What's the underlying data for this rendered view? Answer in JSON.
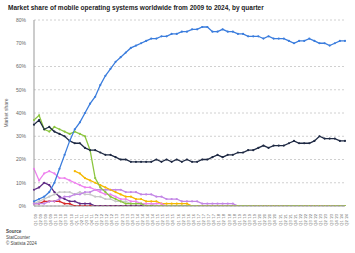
{
  "chart_data": {
    "type": "line",
    "title": "Market share of mobile operating systems worldwide from 2009 to 2024, by quarter",
    "y_label": "Market share",
    "source": [
      "Source",
      "StatCounter",
      "© Statista 2024"
    ],
    "categories": [
      "Q1 '09",
      "Q2 '09",
      "Q3 '09",
      "Q4 '09",
      "Q1 '10",
      "Q2 '10",
      "Q3 '10",
      "Q4 '10",
      "Q1 '11",
      "Q2 '11",
      "Q3 '11",
      "Q4 '11",
      "Q1 '12",
      "Q2 '12",
      "Q3 '12",
      "Q4 '12",
      "Q1 '13",
      "Q2 '13",
      "Q3 '13",
      "Q4 '13",
      "Q1 '14",
      "Q2 '14",
      "Q3 '14",
      "Q4 '14",
      "Q1 '15",
      "Q2 '15",
      "Q3 '15",
      "Q4 '15",
      "Q1 '16",
      "Q2 '16",
      "Q3 '16",
      "Q4 '16",
      "Q1 '17",
      "Q2 '17",
      "Q3 '17",
      "Q4 '17",
      "Q1 '18",
      "Q2 '18",
      "Q3 '18",
      "Q4 '18",
      "Q1 '19",
      "Q2 '19",
      "Q3 '19",
      "Q4 '19",
      "Q1 '20",
      "Q2 '20",
      "Q3 '20",
      "Q4 '20",
      "Q1 '21",
      "Q2 '21",
      "Q3 '21",
      "Q4 '21",
      "Q1 '22",
      "Q2 '22",
      "Q3 '22",
      "Q4 '22",
      "Q1 '23",
      "Q2 '23",
      "Q3 '23",
      "Q4 '23",
      "Q1 '24",
      "Q2 '24"
    ],
    "series": [
      {
        "color": "#d62728",
        "values": [
          1,
          1,
          2,
          2,
          2,
          2,
          1,
          1,
          0,
          0,
          0,
          0,
          0,
          0,
          0,
          0,
          0,
          0,
          0,
          0,
          0,
          0,
          0,
          0,
          0,
          0,
          0,
          0,
          0,
          0,
          0,
          0,
          0,
          0,
          0,
          0,
          0,
          0,
          0,
          0,
          0,
          0,
          0,
          0,
          0,
          0,
          0,
          0,
          0,
          0,
          0,
          0,
          0,
          0,
          0,
          0,
          0,
          0,
          0,
          0,
          0,
          0
        ]
      },
      {
        "color": "#5e2a84",
        "values": [
          7,
          8,
          10,
          9,
          6,
          4,
          3,
          2,
          2,
          1,
          1,
          1,
          0,
          0,
          0,
          0,
          0,
          0,
          0,
          0,
          0,
          0,
          0,
          0,
          0,
          0,
          0,
          0,
          0,
          0,
          0,
          0,
          0,
          0,
          0,
          0,
          0,
          0,
          0,
          0,
          0,
          0,
          0,
          0,
          0,
          0,
          0,
          0,
          0,
          0,
          0,
          0,
          0,
          0,
          0,
          0,
          0,
          0,
          0,
          0,
          0,
          0
        ]
      },
      {
        "color": "#c8c8c8",
        "values": [
          1,
          2,
          3,
          4,
          5,
          6,
          6,
          6,
          5,
          6,
          5,
          5,
          4,
          4,
          3,
          3,
          2,
          2,
          2,
          1,
          1,
          1,
          1,
          1,
          0,
          0,
          0,
          0,
          0,
          0,
          0,
          0,
          0,
          0,
          0,
          0,
          0,
          0,
          0,
          0,
          0,
          0,
          0,
          0,
          0,
          0,
          0,
          0,
          0,
          0,
          0,
          0,
          0,
          0,
          0,
          0,
          0,
          0,
          0,
          0,
          0,
          0
        ]
      },
      {
        "color": "#c386e6",
        "values": [
          1,
          1,
          1,
          2,
          2,
          3,
          4,
          4,
          5,
          5,
          6,
          6,
          7,
          7,
          7,
          7,
          7,
          7,
          6,
          6,
          6,
          5,
          5,
          5,
          4,
          4,
          3,
          3,
          3,
          2,
          2,
          2,
          2,
          1,
          1,
          1,
          1,
          1,
          1,
          1,
          0,
          0,
          0,
          0,
          0,
          0,
          0,
          0,
          0,
          0,
          0,
          0,
          0,
          0,
          0,
          0,
          0,
          0,
          0,
          0,
          0,
          0
        ]
      },
      {
        "color": "#f5b700",
        "values": [
          null,
          null,
          null,
          null,
          null,
          null,
          null,
          null,
          15,
          14,
          12,
          11,
          10,
          9,
          8,
          7,
          6,
          5,
          4,
          4,
          3,
          3,
          2,
          2,
          2,
          1,
          1,
          1,
          1,
          1,
          1,
          0,
          0,
          0,
          0,
          0,
          0,
          0,
          0,
          0,
          0,
          0,
          0,
          0,
          0,
          0,
          0,
          0,
          0,
          0,
          0,
          0,
          0,
          0,
          0,
          0,
          0,
          0,
          0,
          0,
          0,
          0
        ]
      },
      {
        "color": "#ee82ee",
        "values": [
          16,
          11,
          14,
          15,
          14,
          12,
          12,
          11,
          10,
          9,
          8,
          8,
          7,
          6,
          5,
          5,
          4,
          3,
          3,
          2,
          2,
          1,
          1,
          1,
          1,
          1,
          0,
          0,
          0,
          0,
          0,
          0,
          0,
          0,
          0,
          0,
          0,
          0,
          0,
          0,
          0,
          0,
          0,
          0,
          0,
          0,
          0,
          0,
          0,
          0,
          0,
          0,
          0,
          0,
          0,
          0,
          0,
          0,
          0,
          0,
          0,
          0
        ]
      },
      {
        "color": "#8cc63f",
        "values": [
          37,
          39,
          33,
          32,
          34,
          33,
          32,
          31,
          32,
          31,
          30,
          24,
          12,
          8,
          6,
          4,
          3,
          2,
          1,
          1,
          1,
          1,
          0,
          0,
          0,
          0,
          0,
          0,
          0,
          0,
          0,
          0,
          0,
          0,
          0,
          0,
          0,
          0,
          0,
          0,
          0,
          0,
          0,
          0,
          0,
          0,
          0,
          0,
          0,
          0,
          0,
          0,
          0,
          0,
          0,
          0,
          0,
          0,
          0,
          0,
          0,
          0
        ]
      },
      {
        "color": "#1f2a44",
        "values": [
          35,
          37,
          33,
          34,
          32,
          31,
          30,
          28,
          27,
          27,
          25,
          24,
          24,
          23,
          22,
          22,
          21,
          20,
          20,
          19,
          19,
          19,
          19,
          19,
          20,
          19,
          20,
          19,
          20,
          19,
          20,
          19,
          19,
          20,
          20,
          21,
          22,
          21,
          22,
          22,
          23,
          23,
          24,
          24,
          25,
          26,
          25,
          26,
          26,
          26,
          27,
          28,
          27,
          27,
          27,
          28,
          30,
          29,
          29,
          29,
          28,
          28
        ]
      },
      {
        "color": "#3b7ddd",
        "values": [
          2,
          3,
          4,
          6,
          10,
          16,
          22,
          28,
          33,
          36,
          40,
          44,
          47,
          52,
          56,
          59,
          62,
          64,
          66,
          68,
          69,
          70,
          71,
          72,
          72,
          73,
          73,
          74,
          74,
          75,
          75,
          76,
          76,
          77,
          77,
          75,
          75,
          76,
          75,
          75,
          74,
          74,
          73,
          73,
          73,
          72,
          73,
          72,
          72,
          72,
          71,
          70,
          71,
          71,
          72,
          71,
          70,
          70,
          69,
          70,
          71,
          71
        ]
      }
    ],
    "ylim": [
      0,
      80
    ],
    "yticks": [
      {
        "value": 0,
        "label": "0%"
      },
      {
        "value": 10,
        "label": "10%"
      },
      {
        "value": 20,
        "label": "20%"
      },
      {
        "value": 30,
        "label": "30%"
      },
      {
        "value": 40,
        "label": "40%"
      },
      {
        "value": 50,
        "label": "50%"
      },
      {
        "value": 60,
        "label": "60%"
      },
      {
        "value": 70,
        "label": "70%"
      },
      {
        "value": 80,
        "label": "80%"
      }
    ],
    "grid": true,
    "marker": "circle"
  }
}
